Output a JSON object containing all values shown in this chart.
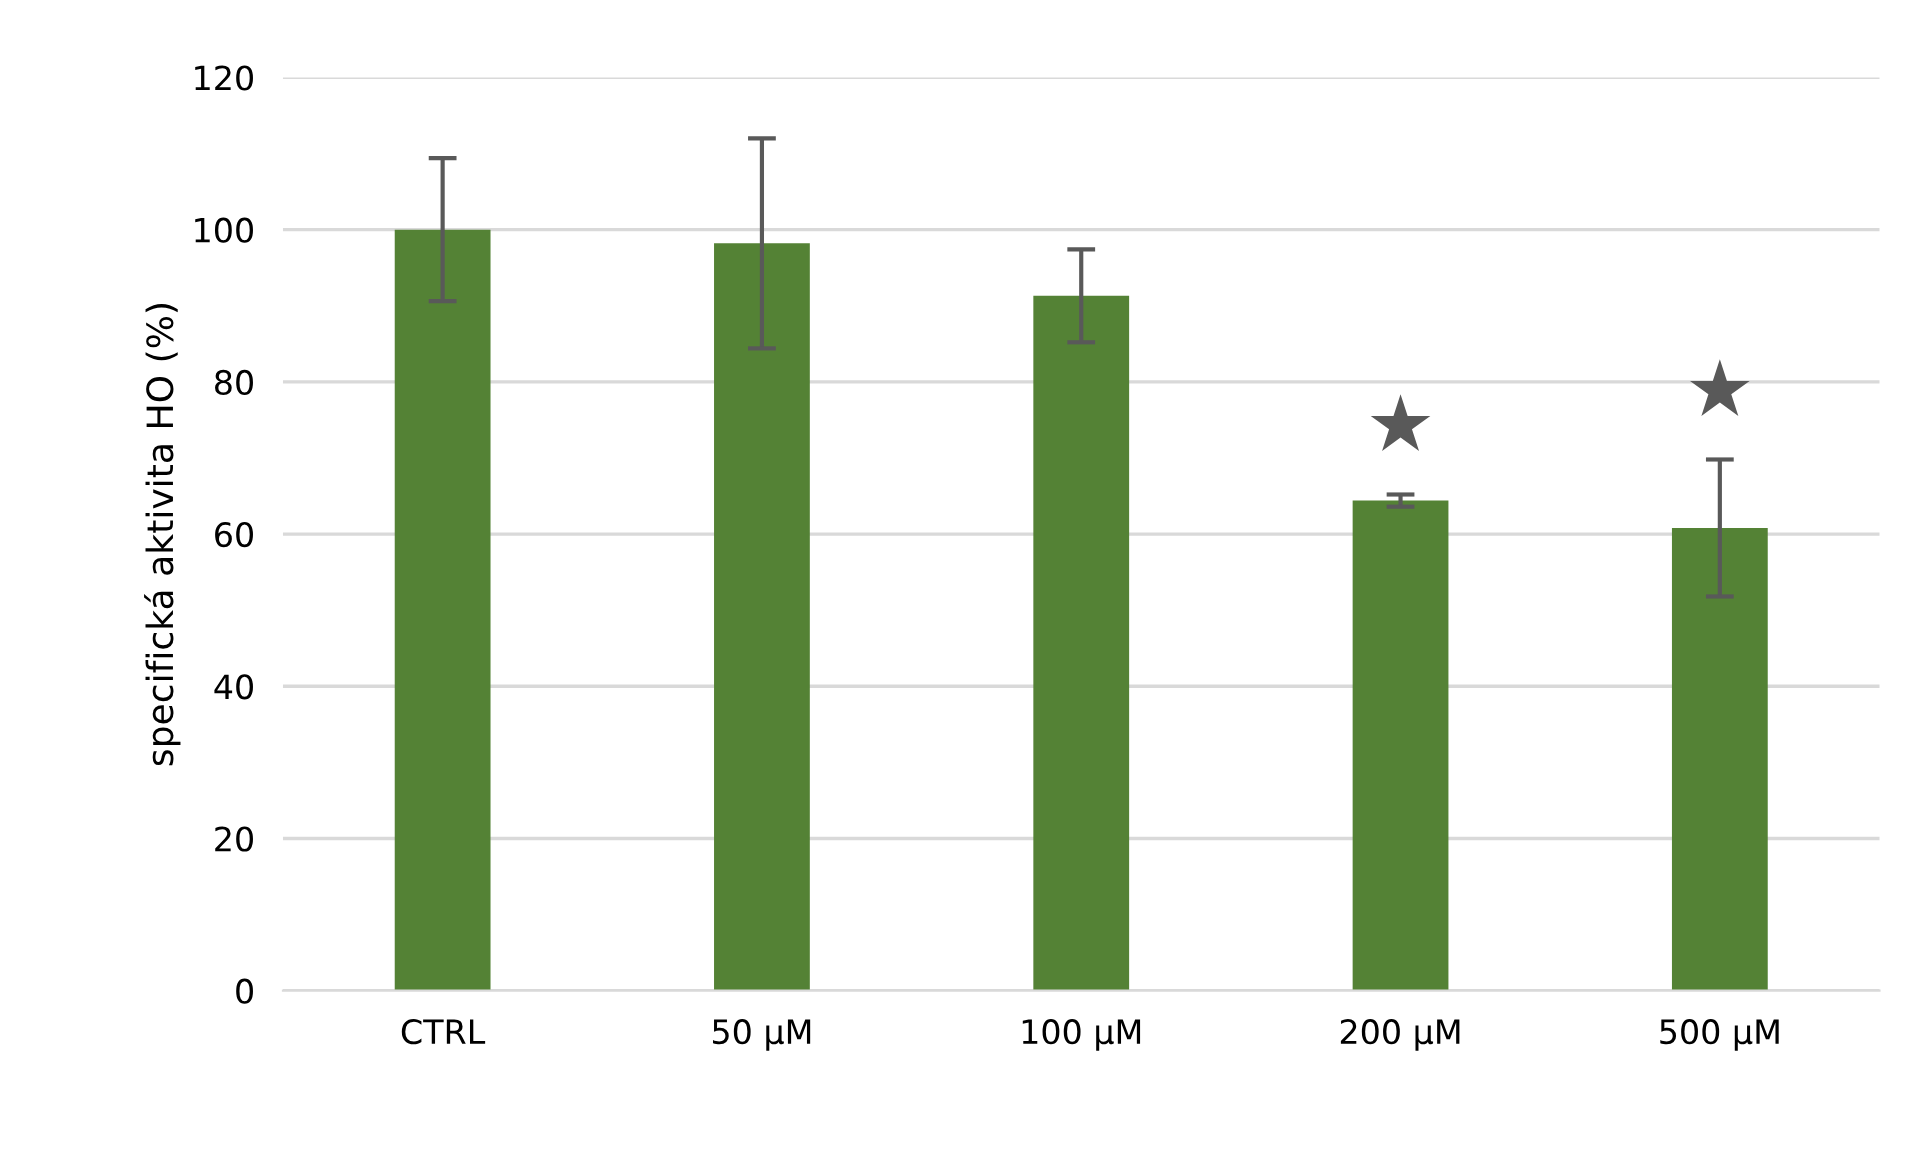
{
  "chart_data": {
    "type": "bar",
    "ylabel": "specifická aktivita HO (%)",
    "categories": [
      "CTRL",
      "50 µM",
      "100 µM",
      "200 µM",
      "500 µM"
    ],
    "values": [
      100,
      98.2,
      91.3,
      64.4,
      60.8
    ],
    "errors": [
      9.4,
      13.8,
      6.1,
      0.8,
      9.0
    ],
    "color": "#548235",
    "ylim": [
      0,
      120
    ],
    "yticks": [
      0,
      20,
      40,
      60,
      80,
      100,
      120
    ],
    "grid": "y",
    "annotations": [
      "★",
      "★"
    ]
  }
}
